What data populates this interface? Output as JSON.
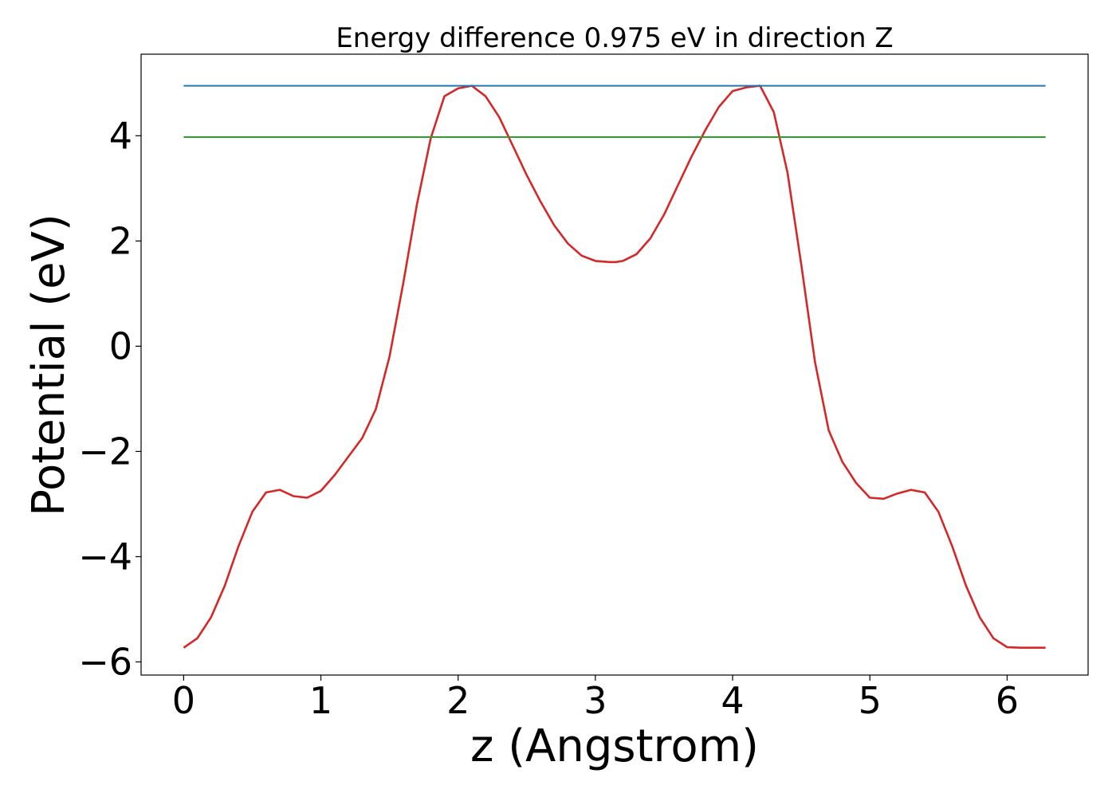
{
  "chart_data": {
    "type": "line",
    "title": "Energy difference 0.975 eV in direction Z",
    "xlabel": "z (Angstrom)",
    "ylabel": "Potential (eV)",
    "xlim": [
      -0.31,
      6.59
    ],
    "ylim": [
      -6.25,
      5.55
    ],
    "xticks": [
      0,
      1,
      2,
      3,
      4,
      5,
      6
    ],
    "xtick_labels": [
      "0",
      "1",
      "2",
      "3",
      "4",
      "5",
      "6"
    ],
    "yticks": [
      -6,
      -4,
      -2,
      0,
      2,
      4
    ],
    "ytick_labels": [
      "−6",
      "−4",
      "−2",
      "0",
      "2",
      "4"
    ],
    "grid": false,
    "legend": "none",
    "series": [
      {
        "color": "#d62728",
        "x": [
          0.0,
          0.1,
          0.2,
          0.3,
          0.4,
          0.5,
          0.6,
          0.7,
          0.8,
          0.9,
          1.0,
          1.1,
          1.2,
          1.3,
          1.4,
          1.5,
          1.6,
          1.7,
          1.8,
          1.9,
          2.0,
          2.1,
          2.2,
          2.3,
          2.4,
          2.5,
          2.6,
          2.7,
          2.8,
          2.9,
          3.0,
          3.1,
          3.15,
          3.2,
          3.3,
          3.4,
          3.5,
          3.6,
          3.7,
          3.8,
          3.9,
          4.0,
          4.1,
          4.2,
          4.3,
          4.4,
          4.5,
          4.6,
          4.7,
          4.8,
          4.9,
          5.0,
          5.1,
          5.2,
          5.3,
          5.4,
          5.5,
          5.6,
          5.7,
          5.8,
          5.9,
          6.0,
          6.1,
          6.2,
          6.28
        ],
        "y": [
          -5.73,
          -5.55,
          -5.15,
          -4.55,
          -3.8,
          -3.15,
          -2.78,
          -2.73,
          -2.85,
          -2.88,
          -2.75,
          -2.45,
          -2.1,
          -1.75,
          -1.2,
          -0.2,
          1.2,
          2.7,
          3.95,
          4.75,
          4.9,
          4.95,
          4.75,
          4.35,
          3.8,
          3.25,
          2.75,
          2.3,
          1.95,
          1.72,
          1.62,
          1.6,
          1.6,
          1.62,
          1.75,
          2.05,
          2.5,
          3.05,
          3.6,
          4.1,
          4.55,
          4.85,
          4.92,
          4.95,
          4.45,
          3.3,
          1.55,
          -0.3,
          -1.6,
          -2.2,
          -2.6,
          -2.88,
          -2.9,
          -2.8,
          -2.73,
          -2.78,
          -3.15,
          -3.8,
          -4.55,
          -5.15,
          -5.55,
          -5.72,
          -5.73,
          -5.73,
          -5.73
        ]
      },
      {
        "color": "#1f77b4",
        "x": [
          0.0,
          6.28
        ],
        "y": [
          4.95,
          4.95
        ]
      },
      {
        "color": "#2ca02c",
        "x": [
          0.0,
          6.28
        ],
        "y": [
          3.975,
          3.975
        ]
      }
    ]
  }
}
